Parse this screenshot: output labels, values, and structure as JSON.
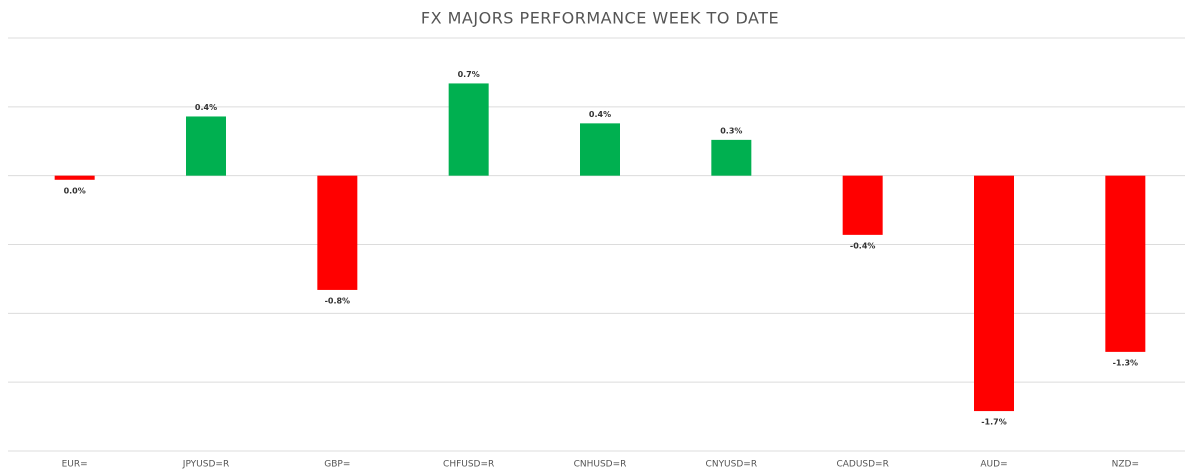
{
  "chart_data": {
    "type": "bar",
    "title": "FX MAJORS PERFORMANCE WEEK TO DATE",
    "categories": [
      "EUR=",
      "JPYUSD=R",
      "GBP=",
      "CHFUSD=R",
      "CNHUSD=R",
      "CNYUSD=R",
      "CADUSD=R",
      "AUD=",
      "NZD="
    ],
    "values": [
      -0.03,
      0.43,
      -0.83,
      0.67,
      0.38,
      0.26,
      -0.43,
      -1.71,
      -1.28
    ],
    "value_labels": [
      "0.0%",
      "0.4%",
      "-0.8%",
      "0.7%",
      "0.4%",
      "0.3%",
      "-0.4%",
      "-1.7%",
      "-1.3%"
    ],
    "colors": [
      "#ff0000",
      "#00b050",
      "#ff0000",
      "#00b050",
      "#00b050",
      "#00b050",
      "#ff0000",
      "#ff0000",
      "#ff0000"
    ],
    "ylim": [
      -2,
      1
    ],
    "yticks": [
      -2,
      -1.5,
      -1,
      -0.5,
      0,
      0.5,
      1
    ],
    "grid": true
  }
}
